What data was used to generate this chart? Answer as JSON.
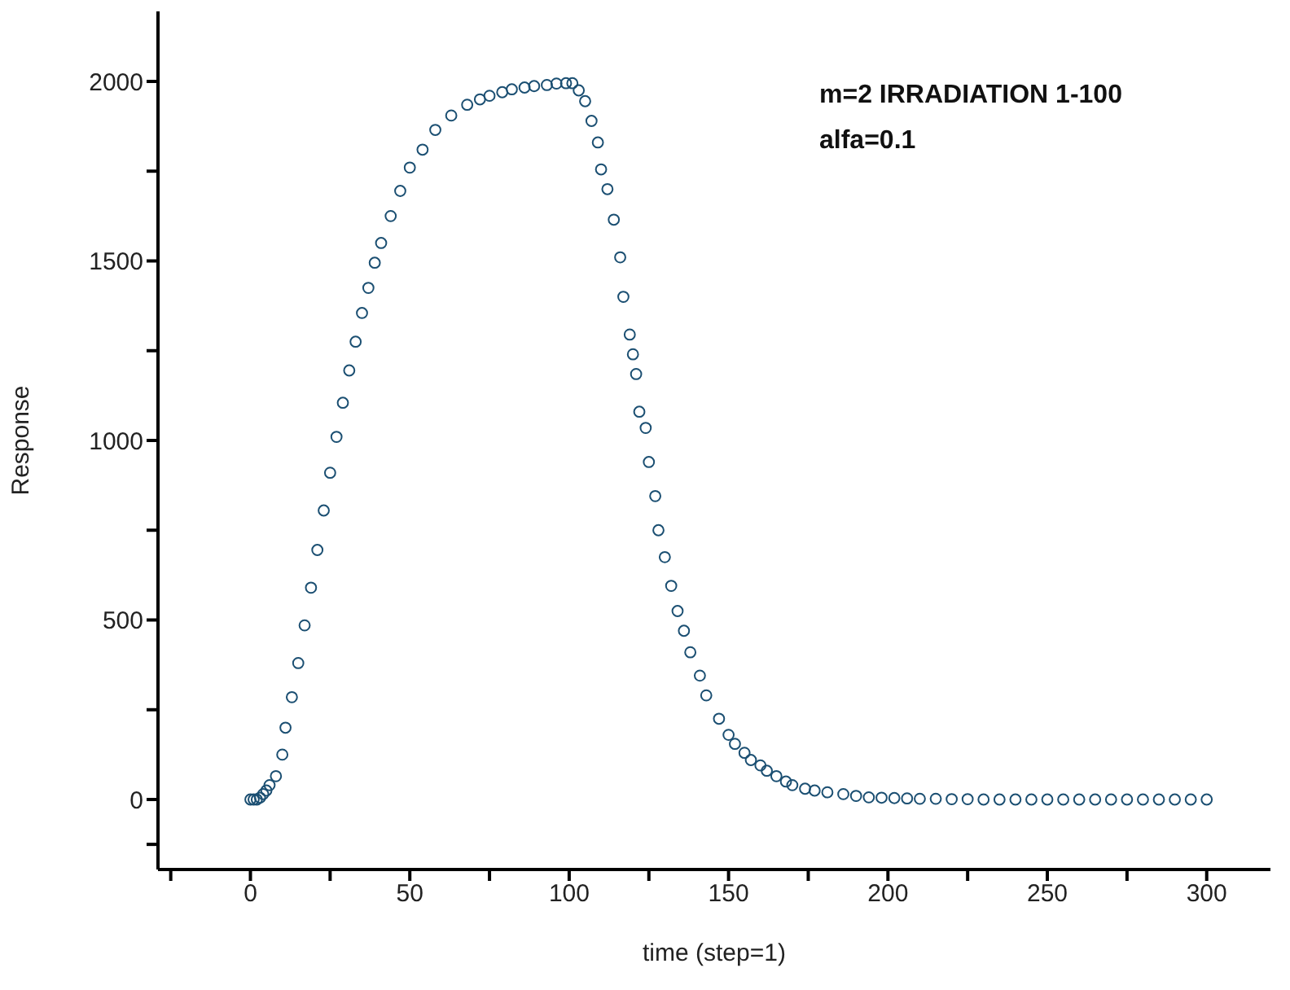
{
  "chart_data": {
    "type": "scatter",
    "xlabel": "time (step=1)",
    "ylabel": "Response",
    "annotations": [
      "m=2 IRRADIATION 1-100",
      "alfa=0.1"
    ],
    "xlim": [
      -29,
      320
    ],
    "ylim": [
      -195,
      2195
    ],
    "xticks": [
      {
        "value": -25,
        "label": null
      },
      0,
      {
        "value": 25,
        "label": null
      },
      50,
      {
        "value": 75,
        "label": null
      },
      100,
      {
        "value": 125,
        "label": null
      },
      150,
      {
        "value": 175,
        "label": null
      },
      200,
      {
        "value": 225,
        "label": null
      },
      250,
      {
        "value": 275,
        "label": null
      },
      300
    ],
    "yticks": [
      {
        "value": -125,
        "label": null
      },
      0,
      {
        "value": 250,
        "label": null
      },
      500,
      {
        "value": 750,
        "label": null
      },
      1000,
      {
        "value": 1250,
        "label": null
      },
      1500,
      {
        "value": 1750,
        "label": null
      },
      2000
    ],
    "marker": "circle",
    "series": [
      {
        "color": "#1b4f72",
        "x": [
          0,
          1,
          2,
          3,
          4,
          5,
          6,
          8,
          10,
          11,
          13,
          15,
          17,
          19,
          21,
          23,
          25,
          27,
          29,
          31,
          33,
          35,
          37,
          39,
          41,
          44,
          47,
          50,
          54,
          58,
          63,
          68,
          72,
          75,
          79,
          82,
          86,
          89,
          93,
          96,
          99,
          101,
          103,
          105,
          107,
          109,
          110,
          112,
          114,
          116,
          117,
          119,
          120,
          121,
          122,
          124,
          125,
          127,
          128,
          130,
          132,
          134,
          136,
          138,
          141,
          143,
          147,
          150,
          152,
          155,
          157,
          160,
          162,
          165,
          168,
          170,
          174,
          177,
          181,
          186,
          190,
          194,
          198,
          202,
          206,
          210,
          215,
          220,
          225,
          230,
          235,
          240,
          245,
          250,
          255,
          260,
          265,
          270,
          275,
          280,
          285,
          290,
          295,
          300
        ],
        "values": [
          0,
          0,
          0,
          5,
          15,
          25,
          40,
          65,
          125,
          200,
          285,
          380,
          485,
          590,
          695,
          805,
          910,
          1010,
          1105,
          1195,
          1275,
          1355,
          1425,
          1495,
          1550,
          1625,
          1695,
          1760,
          1810,
          1865,
          1905,
          1935,
          1950,
          1960,
          1970,
          1978,
          1983,
          1987,
          1990,
          1994,
          1995,
          1995,
          1975,
          1945,
          1890,
          1830,
          1755,
          1700,
          1615,
          1510,
          1400,
          1295,
          1240,
          1185,
          1080,
          1035,
          940,
          845,
          750,
          675,
          595,
          525,
          470,
          410,
          345,
          290,
          225,
          180,
          155,
          130,
          110,
          95,
          80,
          65,
          50,
          40,
          30,
          25,
          20,
          15,
          10,
          6,
          5,
          4,
          3,
          2,
          2,
          1,
          1,
          0,
          0,
          0,
          0,
          0,
          0,
          0,
          0,
          0,
          0,
          0,
          0,
          0,
          0,
          0
        ]
      }
    ]
  }
}
